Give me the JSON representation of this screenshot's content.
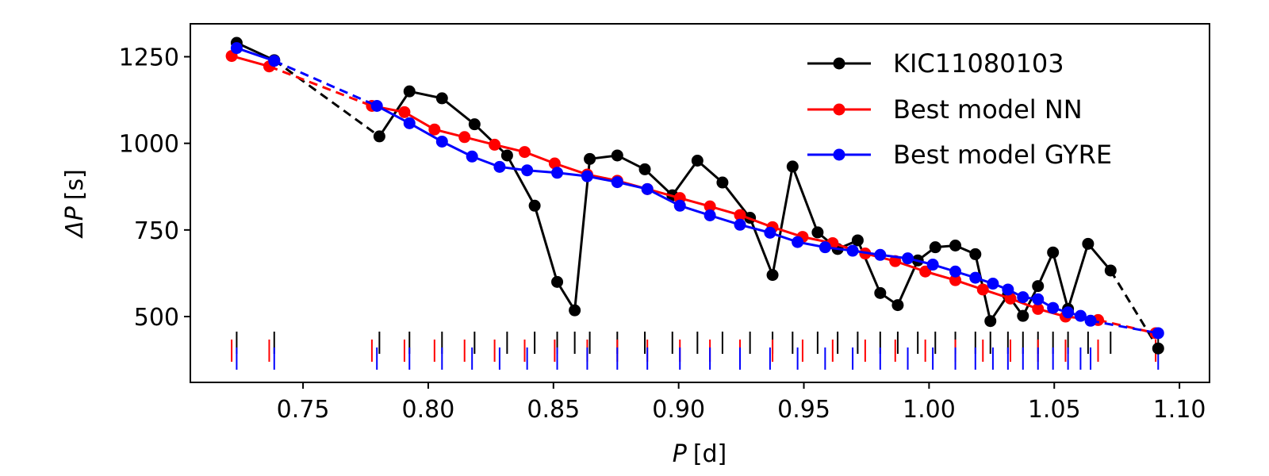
{
  "chart_data": {
    "type": "line",
    "title": "",
    "xlabel_symbol": "P",
    "xlabel_unit": "[d]",
    "ylabel_symbol": "ΔP",
    "ylabel_unit": "[s]",
    "xlim": [
      0.705,
      1.112
    ],
    "ylim": [
      310,
      1345
    ],
    "xticks": [
      0.75,
      0.8,
      0.85,
      0.9,
      0.95,
      1.0,
      1.05,
      1.1
    ],
    "xtick_labels": [
      "0.75",
      "0.80",
      "0.85",
      "0.90",
      "0.95",
      "1.00",
      "1.05",
      "1.10"
    ],
    "yticks": [
      500,
      750,
      1000,
      1250
    ],
    "ytick_labels": [
      "500",
      "750",
      "1000",
      "1250"
    ],
    "legend_position": "top-right",
    "series": [
      {
        "name": "KIC11080103",
        "color": "#000000",
        "x": [
          0.7235,
          0.7385,
          0.7805,
          0.7925,
          0.8055,
          0.8185,
          0.8315,
          0.8425,
          0.8515,
          0.8585,
          0.8645,
          0.8755,
          0.8865,
          0.8975,
          0.9075,
          0.9175,
          0.9285,
          0.9375,
          0.9455,
          0.9555,
          0.9635,
          0.9715,
          0.9805,
          0.9875,
          0.9955,
          1.0025,
          1.0105,
          1.0185,
          1.0245,
          1.0315,
          1.0375,
          1.0435,
          1.0495,
          1.0555,
          1.0635,
          1.0725,
          1.0915
        ],
        "y": [
          1290,
          1240,
          1020,
          1150,
          1130,
          1055,
          965,
          820,
          600,
          518,
          955,
          965,
          925,
          850,
          950,
          887,
          785,
          620,
          933,
          743,
          695,
          720,
          568,
          533,
          662,
          700,
          705,
          680,
          487,
          562,
          502,
          588,
          685,
          522,
          710,
          633,
          408
        ],
        "gap_after_index": [
          1,
          35
        ]
      },
      {
        "name": "Best model NN",
        "color": "#ff0000",
        "x": [
          0.7215,
          0.7365,
          0.7775,
          0.7905,
          0.8025,
          0.8145,
          0.8265,
          0.8385,
          0.8505,
          0.8635,
          0.8755,
          0.8875,
          0.9005,
          0.9125,
          0.9245,
          0.9375,
          0.9495,
          0.9615,
          0.9745,
          0.9865,
          0.9985,
          1.0105,
          1.0215,
          1.0325,
          1.0435,
          1.0545,
          1.0675,
          1.0905
        ],
        "y": [
          1252,
          1222,
          1108,
          1090,
          1040,
          1018,
          996,
          975,
          942,
          910,
          892,
          868,
          842,
          818,
          793,
          758,
          730,
          712,
          682,
          660,
          630,
          605,
          578,
          552,
          522,
          500,
          490,
          452
        ],
        "gap_after_index": [
          1,
          26
        ]
      },
      {
        "name": "Best model GYRE",
        "color": "#0000ff",
        "x": [
          0.7235,
          0.7385,
          0.7795,
          0.7925,
          0.8055,
          0.8175,
          0.8285,
          0.8395,
          0.8515,
          0.8635,
          0.8755,
          0.8875,
          0.9005,
          0.9125,
          0.9245,
          0.9365,
          0.9475,
          0.9585,
          0.9695,
          0.9805,
          0.9915,
          1.0015,
          1.0105,
          1.0185,
          1.0255,
          1.0315,
          1.0375,
          1.0435,
          1.0495,
          1.0555,
          1.0605,
          1.0645,
          1.0915
        ],
        "y": [
          1275,
          1238,
          1108,
          1058,
          1005,
          962,
          932,
          922,
          915,
          905,
          888,
          868,
          820,
          792,
          765,
          742,
          715,
          700,
          690,
          678,
          668,
          650,
          630,
          612,
          595,
          578,
          556,
          550,
          525,
          512,
          502,
          488,
          452
        ],
        "gap_after_index": [
          1,
          31
        ]
      }
    ],
    "rug_rows": [
      {
        "series": "KIC11080103",
        "color": "#000000",
        "row": "top"
      },
      {
        "series": "Best model NN",
        "color": "#ff0000",
        "row": "middle"
      },
      {
        "series": "Best model GYRE",
        "color": "#0000ff",
        "row": "bottom"
      }
    ]
  }
}
